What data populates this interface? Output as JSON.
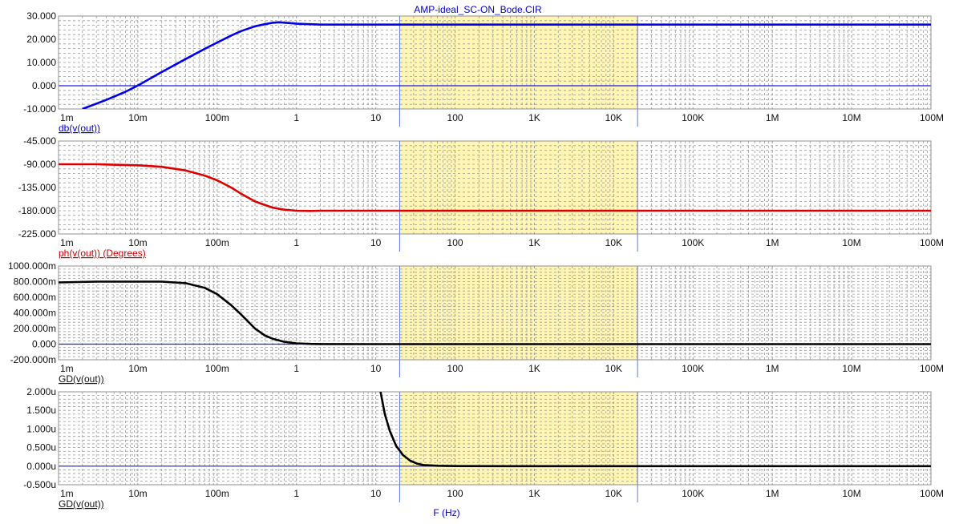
{
  "title": "AMP-ideal_SC-ON_Bode.CIR",
  "x_axis_label": "F (Hz)",
  "colors": {
    "title": "#0000cc",
    "grid": "#9a9a9a",
    "frame": "#909090",
    "highlight_band": "#fff5b4",
    "band_edge": "#5a78e0",
    "zero_line": "#1c1cdc",
    "axis_text": "#111111"
  },
  "chart_data": [
    {
      "type": "line",
      "xscale": "log",
      "xlim": [
        0.001,
        100000000
      ],
      "ylim": [
        -10,
        30
      ],
      "yticks": [
        30,
        20,
        10,
        0,
        -10
      ],
      "ytick_labels": [
        "30.000",
        "20.000",
        "10.000",
        "0.000",
        "-10.000"
      ],
      "xtick_labels": [
        "1m",
        "10m",
        "100m",
        "1",
        "10",
        "100",
        "1K",
        "10K",
        "100K",
        "1M",
        "10M",
        "100M"
      ],
      "ylabel": "db(v(out))",
      "ylabel_color": "#0000cc",
      "highlight_x_range": [
        20,
        20000
      ],
      "grid": true,
      "series": [
        {
          "color": "#0000ee",
          "x": [
            0.002,
            0.004,
            0.007,
            0.01,
            0.02,
            0.04,
            0.07,
            0.1,
            0.15,
            0.2,
            0.3,
            0.4,
            0.5,
            0.6,
            0.8,
            1,
            1.5,
            2,
            10,
            100,
            1000,
            10000,
            100000,
            1000000,
            10000000,
            100000000
          ],
          "y": [
            -10,
            -6.1,
            -2.6,
            0.1,
            5.9,
            11.5,
            15.9,
            18.6,
            21.6,
            23.5,
            25.6,
            26.5,
            27.1,
            27.3,
            27,
            26.7,
            26.5,
            26.3,
            26.3,
            26.3,
            26.3,
            26.3,
            26.3,
            26.3,
            26.3,
            26.3
          ]
        }
      ]
    },
    {
      "type": "line",
      "xscale": "log",
      "xlim": [
        0.001,
        100000000
      ],
      "ylim": [
        -225,
        -45
      ],
      "yticks": [
        -45,
        -90,
        -135,
        -180,
        -225
      ],
      "ytick_labels": [
        "-45.000",
        "-90.000",
        "-135.000",
        "-180.000",
        "-225.000"
      ],
      "xtick_labels": [
        "1m",
        "10m",
        "100m",
        "1",
        "10",
        "100",
        "1K",
        "10K",
        "100K",
        "1M",
        "10M",
        "100M"
      ],
      "ylabel": "ph(v(out)) (Degrees)",
      "ylabel_color": "#cc0000",
      "highlight_x_range": [
        20,
        20000
      ],
      "grid": true,
      "series": [
        {
          "color": "#dd0000",
          "x": [
            0.001,
            0.003,
            0.01,
            0.02,
            0.04,
            0.07,
            0.1,
            0.15,
            0.2,
            0.3,
            0.4,
            0.5,
            0.7,
            1,
            1.5,
            2,
            10,
            100,
            1000,
            10000,
            100000,
            1000000,
            10000000,
            100000000
          ],
          "y": [
            -90,
            -90,
            -92,
            -95,
            -102,
            -112,
            -121,
            -135,
            -147,
            -162,
            -169,
            -174,
            -178,
            -180,
            -180.5,
            -180,
            -180,
            -180,
            -180,
            -180,
            -180,
            -180,
            -180,
            -180
          ]
        }
      ]
    },
    {
      "type": "line",
      "xscale": "log",
      "xlim": [
        0.001,
        100000000
      ],
      "ylim": [
        -0.2,
        1.0
      ],
      "yticks": [
        1.0,
        0.8,
        0.6,
        0.4,
        0.2,
        0,
        -0.2
      ],
      "ytick_labels": [
        "1000.000m",
        "800.000m",
        "600.000m",
        "400.000m",
        "200.000m",
        "0.000",
        "-200.000m"
      ],
      "xtick_labels": [
        "1m",
        "10m",
        "100m",
        "1",
        "10",
        "100",
        "1K",
        "10K",
        "100K",
        "1M",
        "10M",
        "100M"
      ],
      "ylabel": "GD(v(out))",
      "ylabel_color": "#111111",
      "highlight_x_range": [
        20,
        20000
      ],
      "grid": true,
      "series": [
        {
          "color": "#000000",
          "x": [
            0.001,
            0.003,
            0.01,
            0.02,
            0.04,
            0.07,
            0.1,
            0.15,
            0.2,
            0.3,
            0.4,
            0.5,
            0.7,
            1,
            1.5,
            2,
            10,
            100,
            1000,
            10000,
            100000,
            1000000,
            10000000,
            100000000
          ],
          "y": [
            0.79,
            0.8,
            0.8,
            0.8,
            0.78,
            0.72,
            0.64,
            0.5,
            0.38,
            0.2,
            0.11,
            0.07,
            0.03,
            0.01,
            0.003,
            0.001,
            0,
            0,
            0,
            0,
            0,
            0,
            0,
            0
          ]
        }
      ]
    },
    {
      "type": "line",
      "xscale": "log",
      "xlim": [
        0.001,
        100000000
      ],
      "ylim": [
        -0.5,
        2.0
      ],
      "yticks": [
        2.0,
        1.5,
        1.0,
        0.5,
        0,
        -0.5
      ],
      "ytick_labels": [
        "2.000u",
        "1.500u",
        "1.000u",
        "0.500u",
        "0.000u",
        "-0.500u"
      ],
      "xtick_labels": [
        "1m",
        "10m",
        "100m",
        "1",
        "10",
        "100",
        "1K",
        "10K",
        "100K",
        "1M",
        "10M",
        "100M"
      ],
      "ylabel": "GD(v(out))",
      "ylabel_color": "#111111",
      "highlight_x_range": [
        20,
        20000
      ],
      "grid": true,
      "series": [
        {
          "color": "#000000",
          "x": [
            11.5,
            13,
            15,
            18,
            22,
            27,
            33,
            40,
            60,
            100,
            1000,
            10000,
            100000,
            1000000,
            10000000,
            100000000
          ],
          "y": [
            2.0,
            1.4,
            0.95,
            0.55,
            0.3,
            0.15,
            0.07,
            0.03,
            0.01,
            0.003,
            0,
            0,
            0,
            0,
            0,
            0
          ]
        }
      ]
    }
  ]
}
